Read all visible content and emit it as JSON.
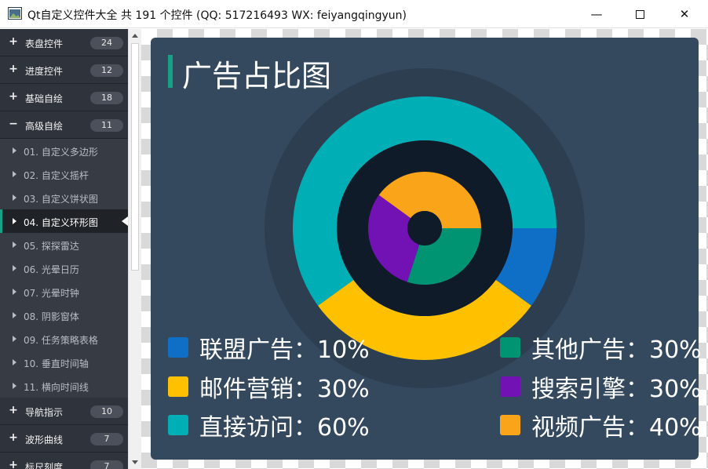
{
  "window": {
    "title": "Qt自定义控件大全 共 191 个控件 (QQ: 517216493 WX: feiyangqingyun)",
    "minimize_icon": "minimize-icon",
    "maximize_icon": "maximize-icon",
    "close_icon": "close-icon"
  },
  "sidebar": {
    "groups_top": [
      {
        "icon": "+",
        "label": "表盘控件",
        "count": "24"
      },
      {
        "icon": "+",
        "label": "进度控件",
        "count": "12"
      },
      {
        "icon": "+",
        "label": "基础自绘",
        "count": "18"
      },
      {
        "icon": "−",
        "label": "高级自绘",
        "count": "11"
      }
    ],
    "sub_items": [
      {
        "label": "01. 自定义多边形"
      },
      {
        "label": "02. 自定义摇杆"
      },
      {
        "label": "03. 自定义饼状图"
      },
      {
        "label": "04. 自定义环形图"
      },
      {
        "label": "05. 探探雷达"
      },
      {
        "label": "06. 光晕日历"
      },
      {
        "label": "07. 光晕时钟"
      },
      {
        "label": "08. 阴影窗体"
      },
      {
        "label": "09. 任务策略表格"
      },
      {
        "label": "10. 垂直时间轴"
      },
      {
        "label": "11. 横向时间线"
      }
    ],
    "active_index": 3,
    "groups_bottom": [
      {
        "icon": "+",
        "label": "导航指示",
        "count": "10"
      },
      {
        "icon": "+",
        "label": "波形曲线",
        "count": "7"
      },
      {
        "icon": "+",
        "label": "标尺刻度",
        "count": "7"
      }
    ]
  },
  "panel": {
    "title": "广告占比图",
    "background": "#34495e",
    "outer_ring_bg": "#2c3e50",
    "inner_bg": "#0f1b29",
    "accent": "#16a085"
  },
  "chart_data": {
    "type": "pie",
    "title": "广告占比图",
    "outer_ring": [
      {
        "name": "联盟广告",
        "value": 10,
        "color": "#0f6fc6"
      },
      {
        "name": "邮件营销",
        "value": 30,
        "color": "#ffc000"
      },
      {
        "name": "直接访问",
        "value": 60,
        "color": "#00aeb5"
      }
    ],
    "inner_ring": [
      {
        "name": "其他广告",
        "value": 30,
        "color": "#009473"
      },
      {
        "name": "搜索引擎",
        "value": 30,
        "color": "#7211b4"
      },
      {
        "name": "视频广告",
        "value": 40,
        "color": "#faa41a"
      }
    ],
    "legend": [
      {
        "label": "联盟广告：10%",
        "color": "#0f6fc6"
      },
      {
        "label": "其他广告：30%",
        "color": "#009473"
      },
      {
        "label": "邮件营销：30%",
        "color": "#ffc000"
      },
      {
        "label": "搜索引擎：30%",
        "color": "#7211b4"
      },
      {
        "label": "直接访问：60%",
        "color": "#00aeb5"
      },
      {
        "label": "视频广告：40%",
        "color": "#faa41a"
      }
    ]
  }
}
